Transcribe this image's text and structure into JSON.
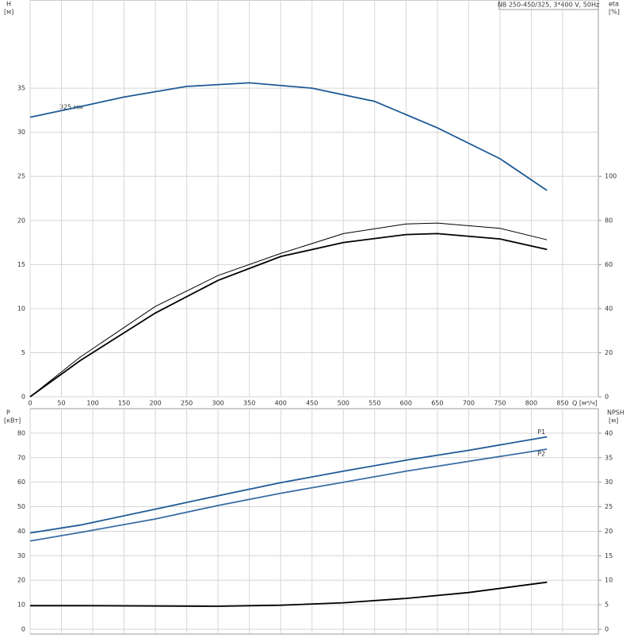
{
  "chart_data": [
    {
      "type": "line",
      "title": "NB 250-450/325, 3*400 V, 50Hz",
      "annotation": "325 мм",
      "ylabel": "H",
      "yunit": "[м]",
      "y2label": "eta",
      "y2unit": "[%]",
      "xlabel": "Q [м³/ч]",
      "xlim": [
        0,
        907
      ],
      "xticks": [
        0,
        50,
        100,
        150,
        200,
        250,
        300,
        350,
        400,
        450,
        500,
        550,
        600,
        650,
        700,
        750,
        800,
        850
      ],
      "ylim": [
        0,
        45
      ],
      "yticks": [
        0,
        5,
        10,
        15,
        20,
        25,
        30,
        35
      ],
      "y2lim": [
        0,
        180
      ],
      "y2ticks": [
        0,
        20,
        40,
        60,
        80,
        100
      ],
      "grid": true,
      "series": [
        {
          "color": "#1f5a96",
          "x": [
            0,
            80,
            150,
            250,
            350,
            450,
            550,
            650,
            750,
            825
          ],
          "values": [
            31.7,
            32.9,
            34,
            35.2,
            35.6,
            35,
            33.5,
            30.5,
            27,
            23.4
          ]
        },
        {
          "color": "#000000",
          "axis": "y2",
          "x": [
            0,
            80,
            200,
            300,
            400,
            500,
            600,
            650,
            750,
            825
          ],
          "values": [
            0,
            18,
            41,
            55,
            65,
            74,
            78.4,
            78.8,
            76.4,
            71.2
          ]
        },
        {
          "color": "#000000",
          "axis": "y2",
          "x": [
            0,
            80,
            200,
            300,
            400,
            500,
            600,
            650,
            750,
            825
          ],
          "values": [
            0,
            16.4,
            38,
            52.8,
            63.6,
            70,
            73.6,
            74,
            71.6,
            66.8
          ]
        }
      ]
    },
    {
      "type": "line",
      "ylabel": "P",
      "yunit": "[кВт]",
      "y2label": "NPSH",
      "y2unit": "[м]",
      "xlim": [
        0,
        907
      ],
      "ylim": [
        0,
        90
      ],
      "yticks": [
        0,
        10,
        20,
        30,
        40,
        50,
        60,
        70,
        80
      ],
      "y2lim": [
        0,
        45
      ],
      "y2ticks": [
        0,
        5,
        10,
        15,
        20,
        25,
        30,
        35,
        40
      ],
      "grid": true,
      "series": [
        {
          "name": "P1",
          "color": "#1f5a96",
          "x": [
            0,
            80,
            200,
            300,
            400,
            500,
            600,
            700,
            825
          ],
          "values": [
            39.3,
            42.5,
            49,
            54.5,
            59.8,
            64.5,
            69,
            73,
            78.5
          ]
        },
        {
          "name": "P2",
          "color": "#3a6ea5",
          "x": [
            0,
            80,
            200,
            300,
            400,
            500,
            600,
            700,
            825
          ],
          "values": [
            36,
            39.5,
            45,
            50.5,
            55.5,
            60,
            64.5,
            68.5,
            73.5
          ]
        },
        {
          "color": "#000000",
          "axis": "y2",
          "x": [
            0,
            80,
            300,
            400,
            500,
            600,
            700,
            825
          ],
          "values": [
            4.8,
            4.8,
            4.7,
            4.9,
            5.4,
            6.3,
            7.5,
            9.6
          ]
        }
      ]
    }
  ]
}
